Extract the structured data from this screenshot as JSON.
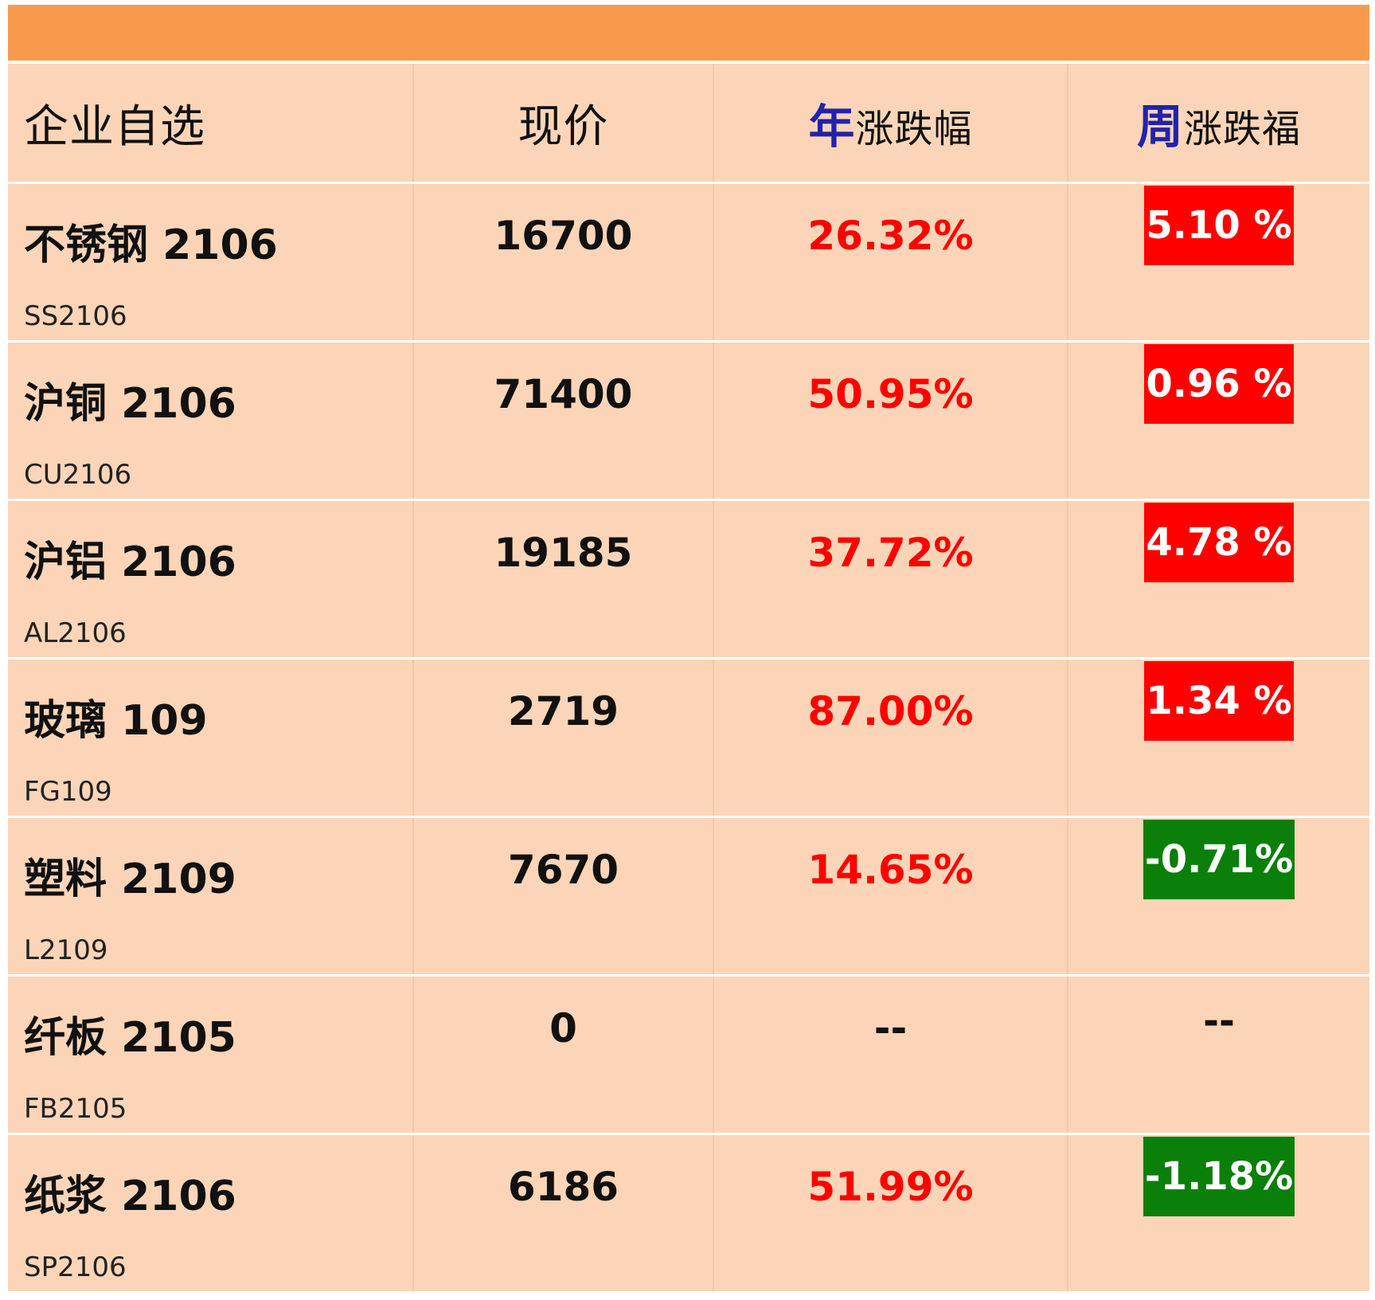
{
  "header": {
    "col_name": "企业自选",
    "col_price": "现价",
    "col_year_highlight": "年",
    "col_year_rest": "涨跌幅",
    "col_week_highlight": "周",
    "col_week_rest": "涨跌福"
  },
  "colors": {
    "top_bar": "#f79a4b",
    "row_bg": "#fcd5b8",
    "up_red": "#ff0000",
    "down_green": "#0a7f0a",
    "header_highlight": "#2222aa"
  },
  "rows": [
    {
      "name": "不锈钢 2106",
      "code": "SS2106",
      "price": "16700",
      "year_change": "26.32%",
      "week_change": "5.10 %",
      "week_dir": "up"
    },
    {
      "name": "沪铜 2106",
      "code": "CU2106",
      "price": "71400",
      "year_change": "50.95%",
      "week_change": "0.96 %",
      "week_dir": "up"
    },
    {
      "name": "沪铝 2106",
      "code": "AL2106",
      "price": "19185",
      "year_change": "37.72%",
      "week_change": "4.78 %",
      "week_dir": "up"
    },
    {
      "name": "玻璃 109",
      "code": "FG109",
      "price": "2719",
      "year_change": "87.00%",
      "week_change": "1.34 %",
      "week_dir": "up"
    },
    {
      "name": "塑料 2109",
      "code": "L2109",
      "price": "7670",
      "year_change": "14.65%",
      "week_change": "-0.71%",
      "week_dir": "down"
    },
    {
      "name": "纤板 2105",
      "code": "FB2105",
      "price": "0",
      "year_change": "--",
      "week_change": "--",
      "week_dir": "none"
    },
    {
      "name": "纸浆 2106",
      "code": "SP2106",
      "price": "6186",
      "year_change": "51.99%",
      "week_change": "-1.18%",
      "week_dir": "down"
    }
  ]
}
